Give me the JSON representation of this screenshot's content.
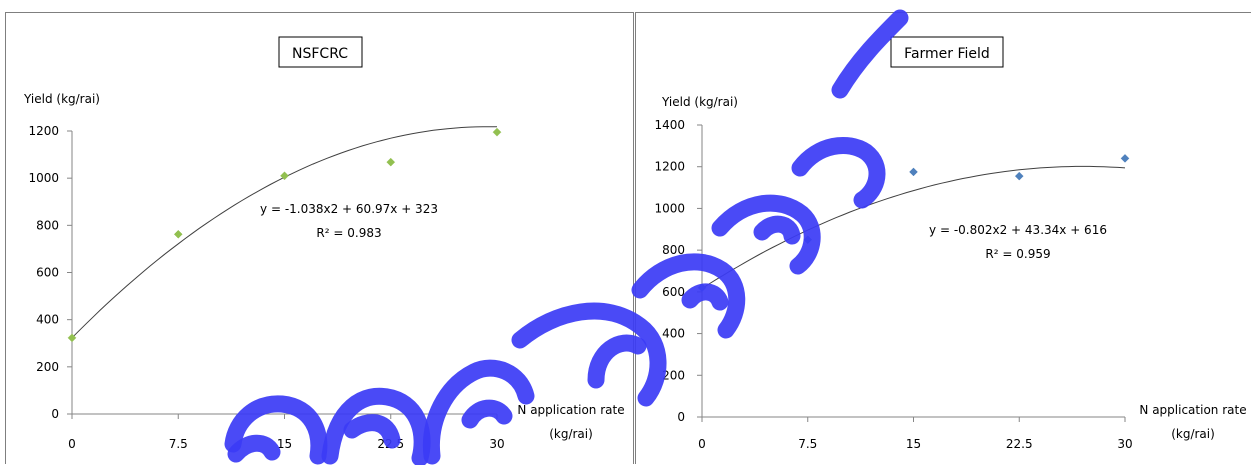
{
  "chart_data": [
    {
      "type": "scatter",
      "title": "NSFCRC",
      "ylabel": "Yield (kg/rai)",
      "xlabel": "N application rate (kg/rai)",
      "xlabel_line1": "N application rate",
      "xlabel_line2": "(kg/rai)",
      "x_ticks": [
        "0",
        "7.5",
        "15",
        "22.5",
        "30"
      ],
      "y_ticks": [
        "0",
        "200",
        "400",
        "600",
        "800",
        "1000",
        "1200"
      ],
      "xlim": [
        0,
        30
      ],
      "ylim": [
        0,
        1200
      ],
      "series": [
        {
          "x": [
            0,
            7.5,
            15,
            22.5,
            30
          ],
          "y": [
            323,
            762,
            1010,
            1068,
            1195
          ]
        }
      ],
      "marker_color": "#92c050",
      "trendline": {
        "type": "polynomial",
        "a": -1.038,
        "b": 60.97,
        "c": 323
      },
      "equation": "y = -1.038x2 + 60.97x + 323",
      "r_squared": "R² = 0.983",
      "grid": false
    },
    {
      "type": "scatter",
      "title": "Farmer Field",
      "ylabel": "Yield (kg/rai)",
      "xlabel": "N application rate (kg/rai)",
      "xlabel_line1": "N application rate",
      "xlabel_line2": "(kg/rai)",
      "x_ticks": [
        "0",
        "7.5",
        "15",
        "22.5",
        "30"
      ],
      "y_ticks": [
        "0",
        "200",
        "400",
        "600",
        "800",
        "1000",
        "1200",
        "1400"
      ],
      "xlim": [
        0,
        30
      ],
      "ylim": [
        0,
        1400
      ],
      "series": [
        {
          "x": [
            0,
            7.5,
            15,
            22.5,
            30
          ],
          "y": [
            620,
            850,
            1175,
            1155,
            1240
          ]
        }
      ],
      "marker_color": "#4f81bd",
      "trendline": {
        "type": "polynomial",
        "a": -0.802,
        "b": 43.34,
        "c": 616
      },
      "equation": "y = -0.802x2 + 43.34x + 616",
      "r_squared": "R² = 0.959",
      "grid": false
    }
  ],
  "watermark": {
    "color": "#3b3bf5"
  }
}
